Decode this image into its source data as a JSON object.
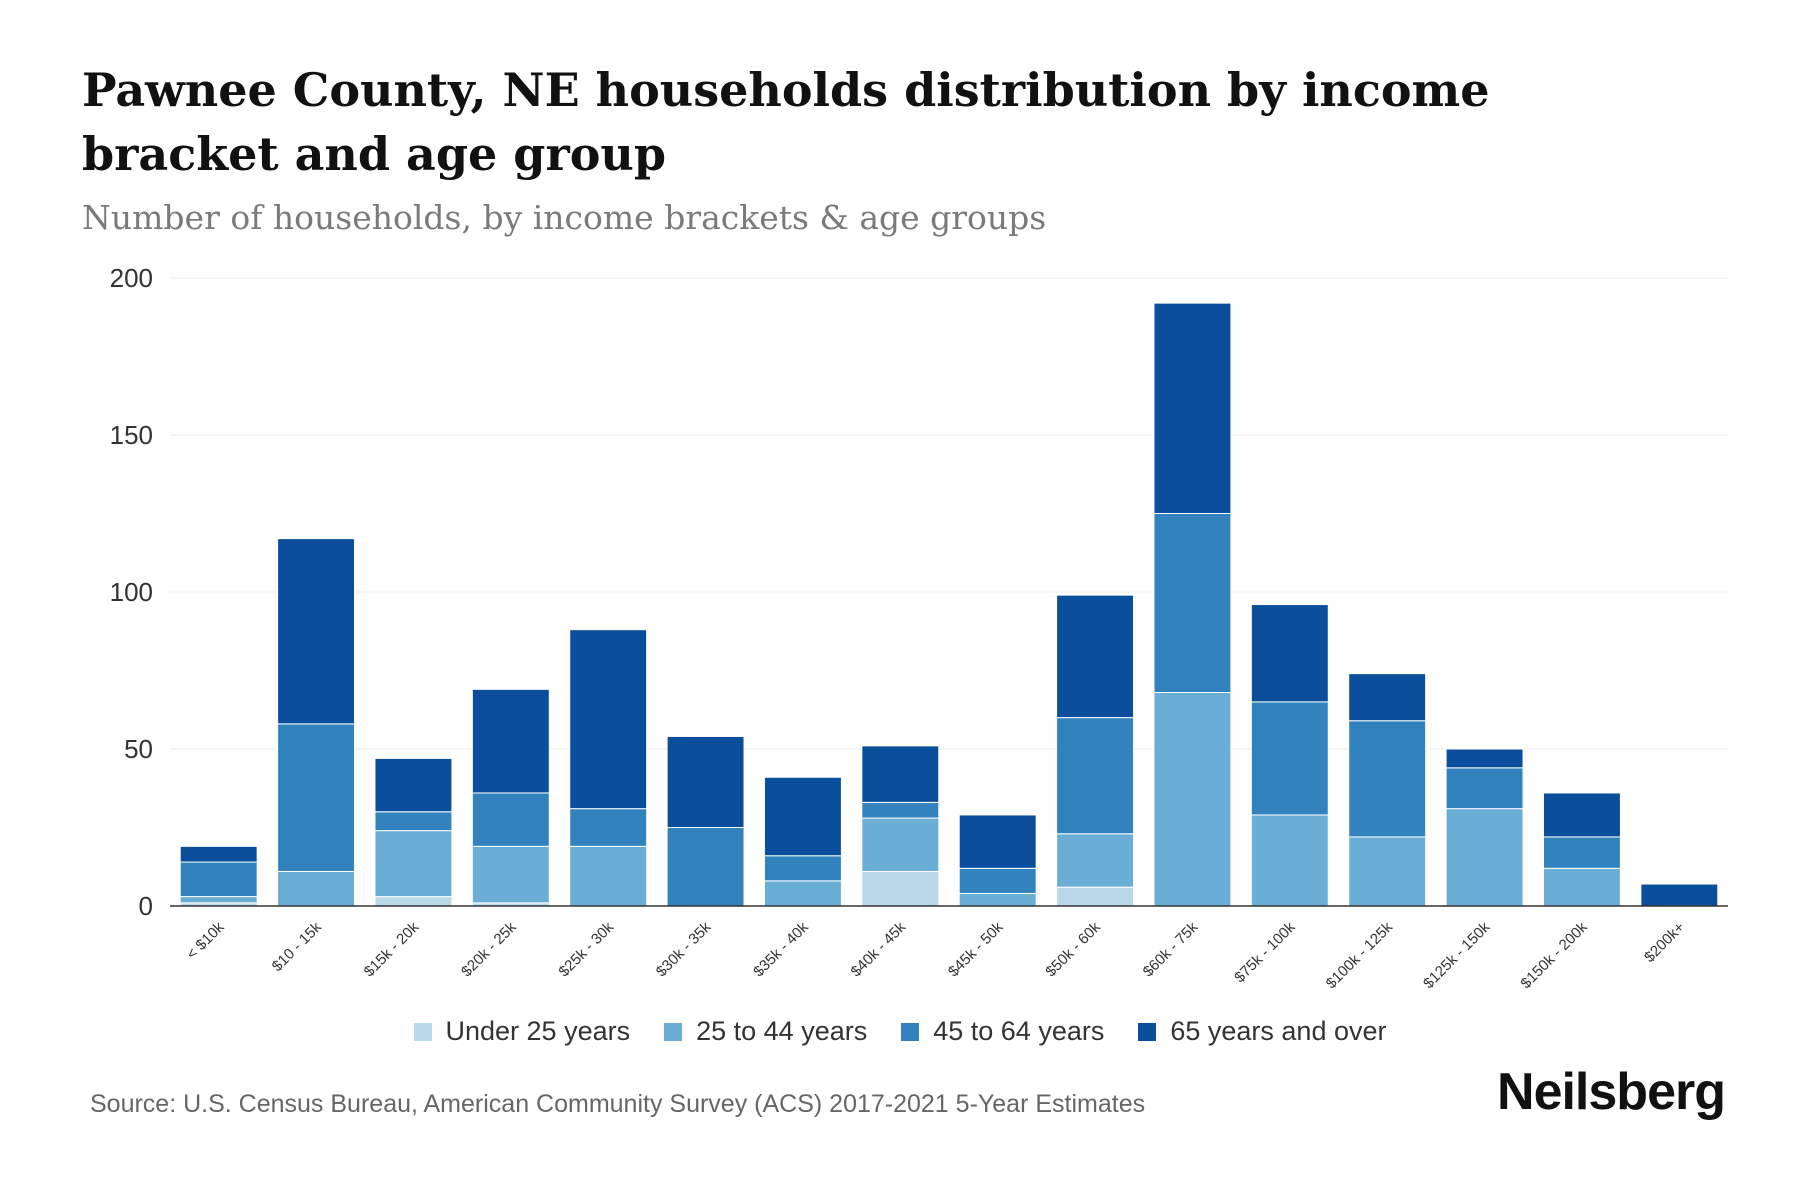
{
  "header": {
    "title": "Pawnee County, NE households distribution by income bracket and age group",
    "subtitle": "Number of households, by income brackets & age groups"
  },
  "footer": {
    "source": "Source: U.S. Census Bureau, American Community Survey (ACS) 2017-2021 5-Year Estimates",
    "brand": "Neilsberg"
  },
  "colors": {
    "under_25": "#b9d8e8",
    "age_25_44": "#6aaed6",
    "age_45_64": "#3182bd",
    "age_65_plus": "#0b4f9c",
    "gridline": "#eeeeee",
    "axis": "#333333"
  },
  "chart_data": {
    "type": "bar",
    "stacked": true,
    "title": "Pawnee County, NE households distribution by income bracket and age group",
    "subtitle": "Number of households, by income brackets & age groups",
    "xlabel": "",
    "ylabel": "",
    "ylim": [
      0,
      200
    ],
    "yticks": [
      0,
      50,
      100,
      150,
      200
    ],
    "grid": true,
    "legend_position": "bottom",
    "categories": [
      "< $10k",
      "$10 - 15k",
      "$15k - 20k",
      "$20k - 25k",
      "$25k - 30k",
      "$30k - 35k",
      "$35k - 40k",
      "$40k - 45k",
      "$45k - 50k",
      "$50k - 60k",
      "$60k - 75k",
      "$75k - 100k",
      "$100k - 125k",
      "$125k - 150k",
      "$150k - 200k",
      "$200k+"
    ],
    "series": [
      {
        "name": "Under 25 years",
        "color": "#b9d8e8",
        "values": [
          1,
          0,
          3,
          1,
          0,
          0,
          0,
          11,
          0,
          6,
          0,
          0,
          0,
          0,
          0,
          0
        ]
      },
      {
        "name": "25 to 44 years",
        "color": "#6aaed6",
        "values": [
          2,
          11,
          21,
          18,
          19,
          0,
          8,
          17,
          4,
          17,
          68,
          29,
          22,
          31,
          12,
          0
        ]
      },
      {
        "name": "45 to 64 years",
        "color": "#3182bd",
        "values": [
          11,
          47,
          6,
          17,
          12,
          25,
          8,
          5,
          8,
          37,
          57,
          36,
          37,
          13,
          10,
          0
        ]
      },
      {
        "name": "65 years and over",
        "color": "#0b4f9c",
        "values": [
          5,
          59,
          17,
          33,
          57,
          29,
          25,
          18,
          17,
          39,
          67,
          31,
          15,
          6,
          14,
          7
        ]
      }
    ]
  }
}
